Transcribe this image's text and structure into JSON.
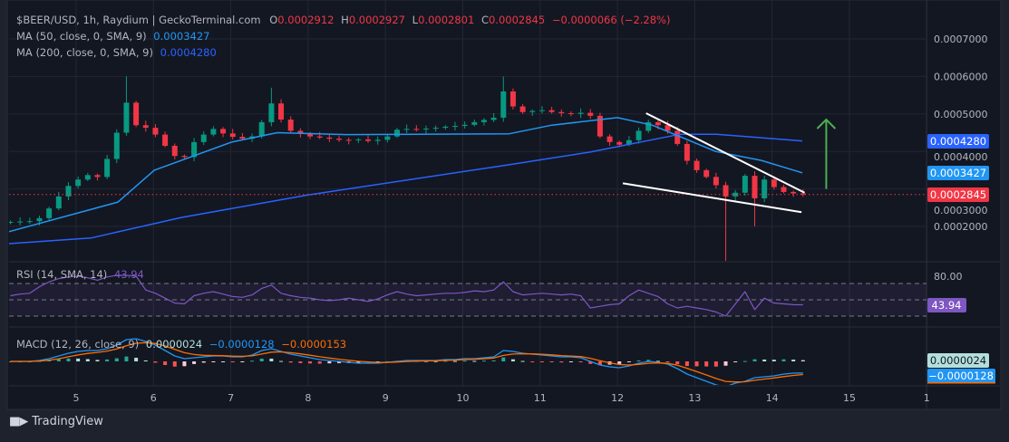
{
  "legend": {
    "symbol": "$BEER/USD, 1h, Raydium | GeckoTerminal.com",
    "o_label": "O",
    "o": "0.0002912",
    "h_label": "H",
    "h": "0.0002927",
    "l_label": "L",
    "l": "0.0002801",
    "c_label": "C",
    "c": "0.0002845",
    "change": "−0.0000066 (−2.28%)",
    "ma50_label": "MA (50, close, 0, SMA, 9)",
    "ma50_value": "0.0003427",
    "ma200_label": "MA (200, close, 0, SMA, 9)",
    "ma200_value": "0.0004280"
  },
  "rsi_legend": {
    "label": "RSI (14, SMA, 14)",
    "value": "43.94",
    "level_label": "80.00"
  },
  "macd_legend": {
    "label": "MACD (12, 26, close, 9)",
    "hist": "0.0000024",
    "macd": "−0.0000128",
    "signal": "−0.0000153"
  },
  "price_badges": {
    "ma200": "0.0004280",
    "ma50": "0.0003427",
    "last": "0.0002845"
  },
  "footer": {
    "brand": "TradingView",
    "logo_text": "17"
  },
  "colors": {
    "up": "#089981",
    "down": "#f23645",
    "ma50": "#2196f3",
    "ma200": "#2962ff",
    "rsi": "#7e57c2",
    "macd": "#2196f3",
    "signal": "#ff6d00",
    "arrow": "#4caf50",
    "bg": "#131722"
  },
  "chart_data": {
    "type": "candlestick",
    "title": "$BEER/USD, 1h, Raydium",
    "price_unit": "1e-6 USD",
    "ylim": [
      100,
      720
    ],
    "y_ticks": [
      "0.0007000",
      "0.0006000",
      "0.0005000",
      "0.0004000",
      "0.0003000",
      "0.0002000"
    ],
    "y_tick_values": [
      700,
      600,
      500,
      400,
      300,
      200
    ],
    "x_ticks": [
      "5",
      "6",
      "7",
      "8",
      "9",
      "10",
      "11",
      "12",
      "13",
      "14",
      "15",
      "1"
    ],
    "x_tick_days": [
      5,
      6,
      7,
      8,
      9,
      10,
      11,
      12,
      13,
      14,
      15,
      16
    ],
    "start_day": 4.15,
    "interval_days": 0.125,
    "closes": [
      212,
      213,
      214,
      222,
      248,
      280,
      308,
      325,
      337,
      332,
      380,
      450,
      530,
      470,
      463,
      445,
      415,
      388,
      385,
      425,
      445,
      460,
      448,
      439,
      434,
      440,
      478,
      528,
      485,
      455,
      447,
      440,
      437,
      434,
      431,
      430,
      432,
      428,
      431,
      440,
      458,
      460,
      459,
      461,
      463,
      466,
      468,
      471,
      478,
      484,
      490,
      560,
      520,
      505,
      508,
      510,
      505,
      502,
      500,
      503,
      495,
      440,
      425,
      418,
      430,
      455,
      478,
      470,
      455,
      420,
      375,
      350,
      332,
      310,
      280,
      290,
      335,
      275,
      325,
      305,
      292,
      288,
      285
    ],
    "first_open": 210,
    "wick_extremes": [
      {
        "index": 12,
        "high": 600
      },
      {
        "index": 27,
        "high": 570
      },
      {
        "index": 51,
        "high": 600
      },
      {
        "index": 74,
        "low": 100
      },
      {
        "index": 77,
        "low": 200
      }
    ],
    "ma50": {
      "days": [
        4.13,
        5.54,
        6.01,
        7.01,
        7.6,
        8.5,
        10.6,
        11.15,
        12.0,
        12.45,
        13.27,
        13.86,
        14.39
      ],
      "values": [
        186,
        265,
        350,
        425,
        450,
        445,
        447,
        470,
        490,
        470,
        400,
        376,
        343
      ]
    },
    "ma200": {
      "days": [
        4.13,
        5.19,
        6.36,
        8.0,
        10.58,
        11.64,
        12.81,
        13.28,
        14.39
      ],
      "values": [
        154,
        169,
        224,
        284,
        364,
        398,
        446,
        446,
        428
      ]
    },
    "trendlines": [
      {
        "from": [
          12.37,
          502
        ],
        "to": [
          14.42,
          290
        ]
      },
      {
        "from": [
          12.07,
          315
        ],
        "to": [
          14.38,
          238
        ]
      }
    ],
    "arrow": {
      "day": 14.7,
      "from": 300,
      "to": 485
    },
    "rsi": {
      "levels": [
        70,
        50,
        30
      ],
      "values": [
        55,
        57,
        58,
        66,
        72,
        76,
        78,
        79,
        77,
        74,
        78,
        80,
        80,
        79,
        62,
        58,
        52,
        46,
        45,
        55,
        58,
        60,
        57,
        54,
        53,
        56,
        64,
        68,
        58,
        55,
        53,
        52,
        50,
        49,
        50,
        52,
        50,
        48,
        51,
        56,
        60,
        57,
        55,
        56,
        57,
        58,
        58,
        59,
        61,
        60,
        62,
        72,
        60,
        56,
        57,
        58,
        57,
        56,
        57,
        55,
        40,
        42,
        44,
        45,
        55,
        62,
        58,
        54,
        45,
        40,
        42,
        40,
        38,
        35,
        30,
        45,
        60,
        38,
        52,
        46,
        45,
        44,
        43.94
      ]
    },
    "macd": {
      "unit": "1e-6",
      "values": [
        0,
        0,
        0,
        1,
        3,
        6,
        9,
        11,
        12,
        12,
        14,
        18,
        24,
        25,
        22,
        18,
        12,
        6,
        3,
        4,
        5,
        6,
        6,
        5,
        5,
        7,
        12,
        14,
        11,
        8,
        6,
        4,
        2,
        1,
        0,
        -1,
        -2,
        -2,
        -2,
        -1,
        0,
        1,
        1,
        1,
        1,
        2,
        2,
        3,
        3,
        4,
        5,
        12,
        11,
        9,
        8,
        7,
        6,
        5,
        5,
        4,
        0,
        -4,
        -6,
        -7,
        -5,
        -2,
        0,
        -1,
        -3,
        -8,
        -14,
        -18,
        -22,
        -26,
        -28,
        -24,
        -22,
        -18,
        -17,
        -16,
        -14,
        -13,
        -12.8
      ]
    }
  }
}
